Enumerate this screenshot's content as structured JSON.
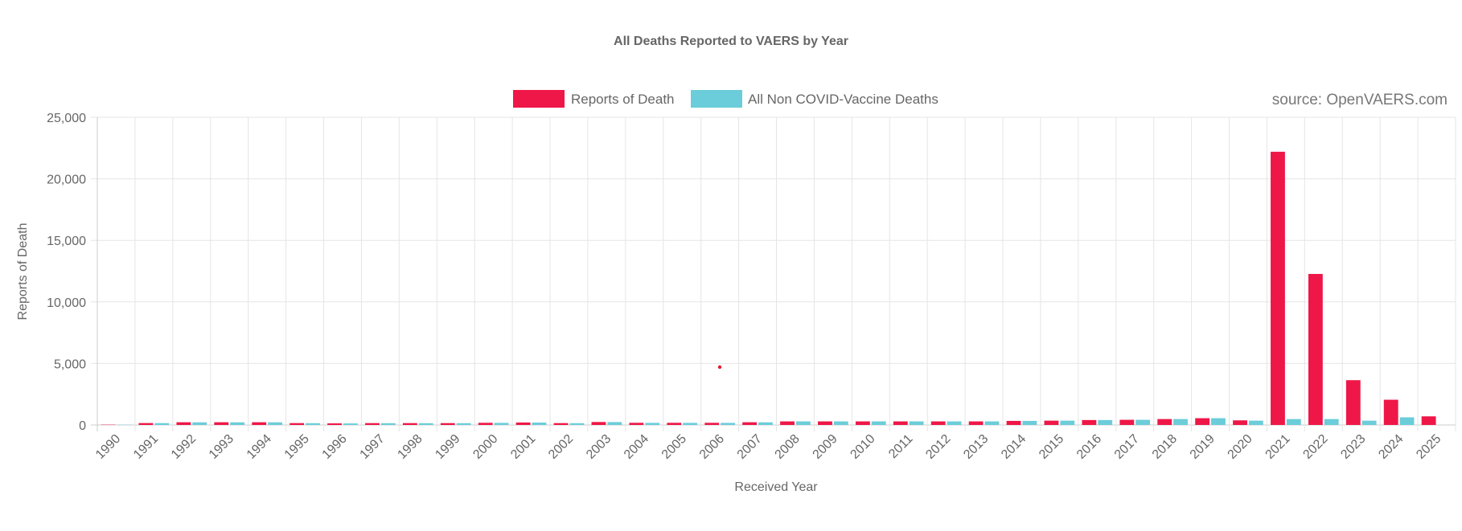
{
  "chart_data": {
    "type": "bar",
    "title": "All Deaths Reported to VAERS by Year",
    "xlabel": "Received Year",
    "ylabel": "Reports of Death",
    "ylim": [
      0,
      25000
    ],
    "yticks": [
      "0",
      "5,000",
      "10,000",
      "15,000",
      "20,000",
      "25,000"
    ],
    "grid": true,
    "legend_position": "top",
    "annotation": "source: OpenVAERS.com",
    "categories": [
      "1990",
      "1991",
      "1992",
      "1993",
      "1994",
      "1995",
      "1996",
      "1997",
      "1998",
      "1999",
      "2000",
      "2001",
      "2002",
      "2003",
      "2004",
      "2005",
      "2006",
      "2007",
      "2008",
      "2009",
      "2010",
      "2011",
      "2012",
      "2013",
      "2014",
      "2015",
      "2016",
      "2017",
      "2018",
      "2019",
      "2020",
      "2021",
      "2022",
      "2023",
      "2024",
      "2025"
    ],
    "series": [
      {
        "name": "Reports of Death",
        "color": "#ee1747",
        "values": [
          25,
          155,
          220,
          220,
          220,
          150,
          130,
          150,
          150,
          150,
          175,
          200,
          150,
          240,
          175,
          175,
          175,
          220,
          290,
          290,
          290,
          290,
          290,
          290,
          330,
          350,
          400,
          420,
          480,
          550,
          375,
          22200,
          12270,
          3640,
          2050,
          700
        ]
      },
      {
        "name": "All Non COVID-Vaccine Deaths",
        "color": "#6bcdd9",
        "values": [
          20,
          150,
          215,
          215,
          215,
          145,
          125,
          145,
          145,
          145,
          170,
          195,
          145,
          235,
          170,
          170,
          170,
          215,
          290,
          290,
          290,
          290,
          290,
          290,
          330,
          350,
          400,
          420,
          480,
          550,
          350,
          480,
          480,
          350,
          620,
          0
        ]
      }
    ]
  }
}
